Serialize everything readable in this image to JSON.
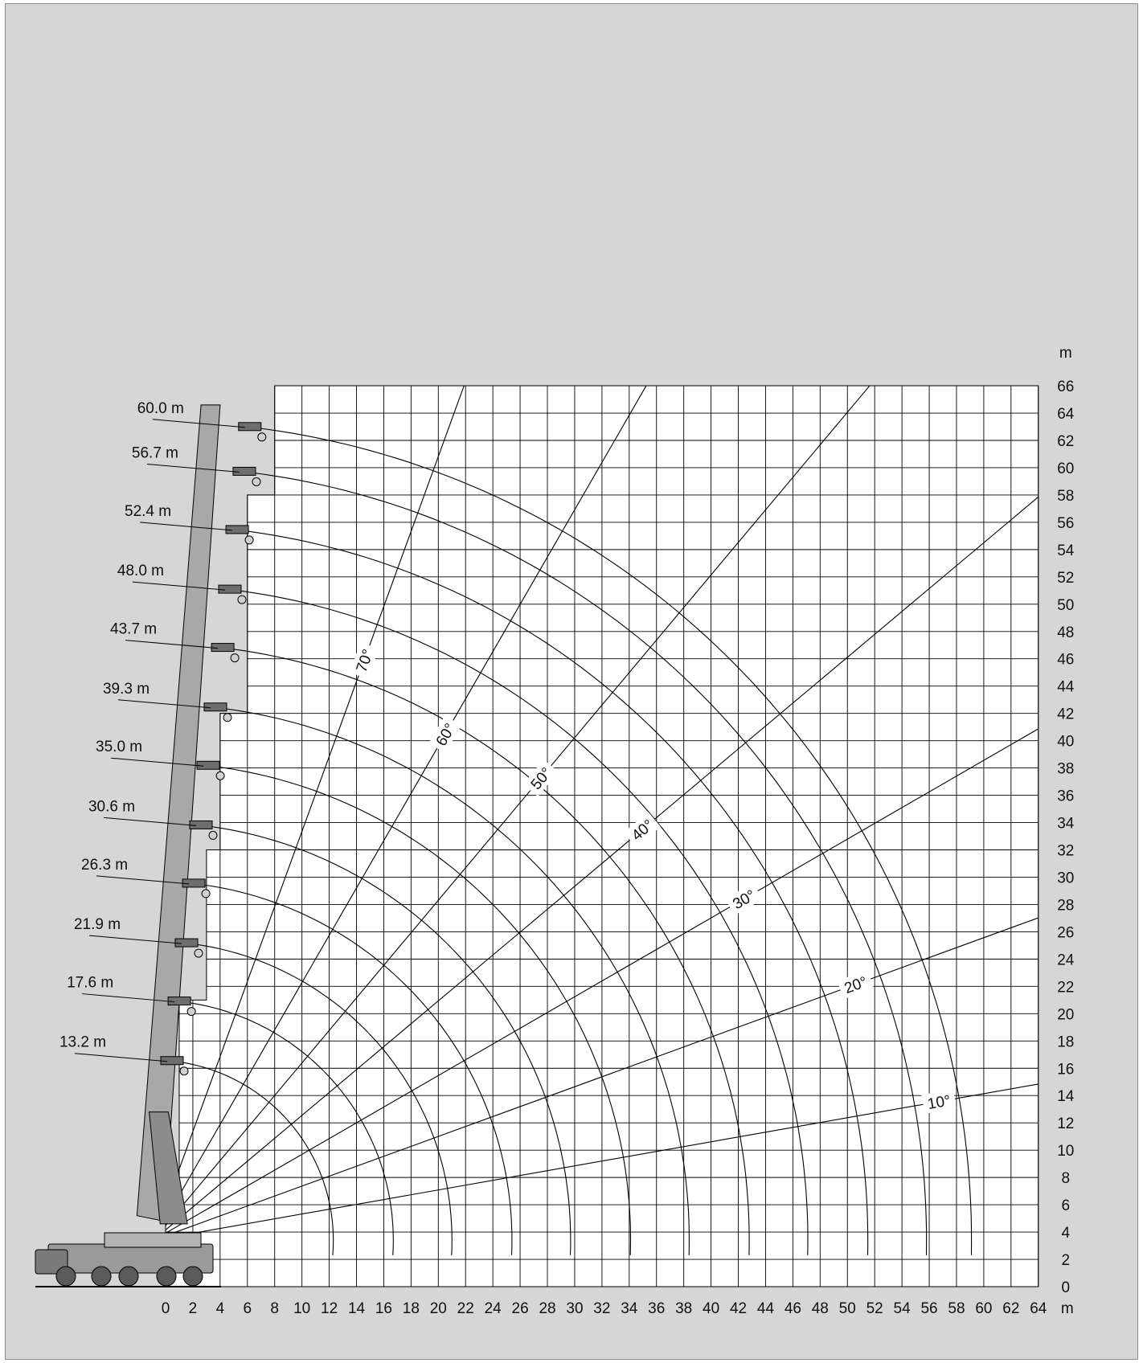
{
  "chart_data": {
    "type": "line",
    "title": "",
    "xlabel": "m",
    "ylabel": "m",
    "xlim": [
      0,
      64
    ],
    "ylim": [
      0,
      66
    ],
    "x_ticks": [
      0,
      2,
      4,
      6,
      8,
      10,
      12,
      14,
      16,
      18,
      20,
      22,
      24,
      26,
      28,
      30,
      32,
      34,
      36,
      38,
      40,
      42,
      44,
      46,
      48,
      50,
      52,
      54,
      56,
      58,
      60,
      62,
      64
    ],
    "y_ticks": [
      0,
      2,
      4,
      6,
      8,
      10,
      12,
      14,
      16,
      18,
      20,
      22,
      24,
      26,
      28,
      30,
      32,
      34,
      36,
      38,
      40,
      42,
      44,
      46,
      48,
      50,
      52,
      54,
      56,
      58,
      60,
      62,
      64,
      66
    ],
    "grid": true,
    "grid_spacing_m": 2,
    "pivot": [
      -0.9,
      3.4
    ],
    "boom_lengths": [
      {
        "label": "13.2 m",
        "length": 13.2
      },
      {
        "label": "17.6 m",
        "length": 17.6
      },
      {
        "label": "21.9 m",
        "length": 21.9
      },
      {
        "label": "26.3 m",
        "length": 26.3
      },
      {
        "label": "30.6 m",
        "length": 30.6
      },
      {
        "label": "35.0 m",
        "length": 35.0
      },
      {
        "label": "39.3 m",
        "length": 39.3
      },
      {
        "label": "43.7 m",
        "length": 43.7
      },
      {
        "label": "48.0 m",
        "length": 48.0
      },
      {
        "label": "52.4 m",
        "length": 52.4
      },
      {
        "label": "56.7 m",
        "length": 56.7
      },
      {
        "label": "60.0 m",
        "length": 60.0
      }
    ],
    "boom_angles": [
      {
        "label": "10°",
        "angle": 10
      },
      {
        "label": "20°",
        "angle": 20
      },
      {
        "label": "30°",
        "angle": 30
      },
      {
        "label": "40°",
        "angle": 40
      },
      {
        "label": "50°",
        "angle": 50
      },
      {
        "label": "60°",
        "angle": 60
      },
      {
        "label": "70°",
        "angle": 70
      }
    ],
    "colors": {
      "background": "#d6d6d6",
      "grid": "#000000",
      "curves": "#000000"
    }
  }
}
